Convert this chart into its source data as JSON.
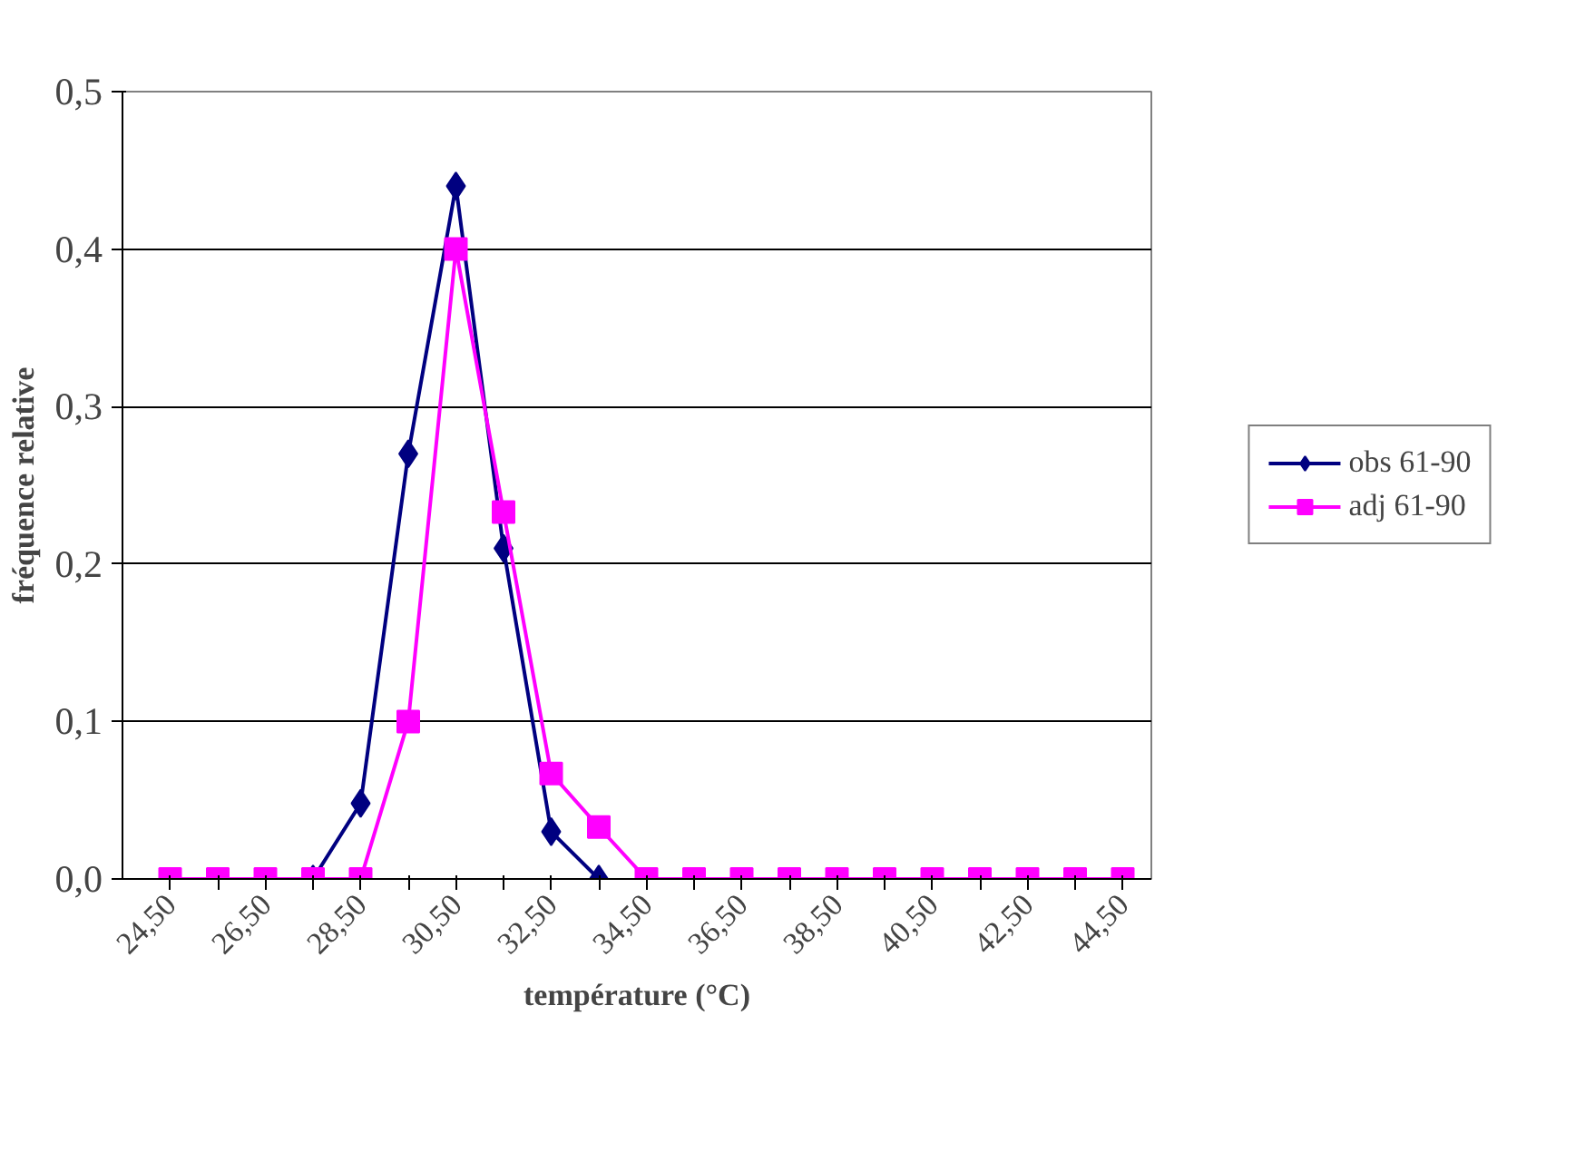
{
  "chart_data": {
    "type": "line",
    "xlabel": "température (°C)",
    "ylabel": "fréquence relative",
    "categories": [
      "24,50",
      null,
      "26,50",
      null,
      "28,50",
      null,
      "30,50",
      null,
      "32,50",
      null,
      "34,50",
      null,
      "36,50",
      null,
      "38,50",
      null,
      "40,50",
      null,
      "42,50",
      null,
      "44,50"
    ],
    "series": [
      {
        "name": "obs 61-90",
        "color": "#000080",
        "marker": "diamond",
        "values": [
          null,
          null,
          null,
          0,
          0.048,
          0.27,
          0.44,
          0.21,
          0.03,
          0,
          null,
          null,
          null,
          null,
          null,
          null,
          null,
          null,
          null,
          null,
          null
        ]
      },
      {
        "name": "adj 61-90",
        "color": "#ff00ff",
        "marker": "square",
        "values": [
          0,
          0,
          0,
          0,
          0,
          0.1,
          0.4,
          0.233,
          0.067,
          0.033,
          0,
          0,
          0,
          0,
          0,
          0,
          0,
          0,
          0,
          0,
          0
        ]
      }
    ],
    "ylim": [
      0,
      0.5
    ],
    "yticks": [
      {
        "value": 0,
        "label": "0,0"
      },
      {
        "value": 0.1,
        "label": "0,1"
      },
      {
        "value": 0.2,
        "label": "0,2"
      },
      {
        "value": 0.3,
        "label": "0,3"
      },
      {
        "value": 0.4,
        "label": "0,4"
      },
      {
        "value": 0.5,
        "label": "0,5"
      }
    ],
    "grid": "y",
    "legend": "right"
  }
}
